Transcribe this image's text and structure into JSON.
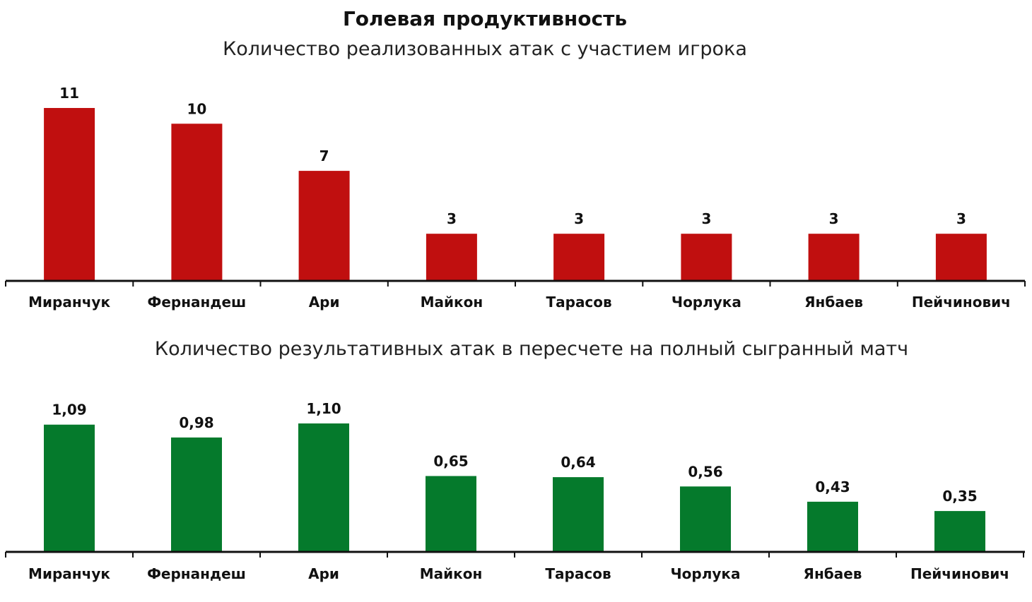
{
  "title": "Голевая продуктивность",
  "colors": {
    "top": "#c00f0f",
    "bottom": "#057a2c",
    "axis": "#111111"
  },
  "chart_data": [
    {
      "type": "bar",
      "title": "Количество реализованных атак с участием игрока",
      "categories": [
        "Миранчук",
        "Фернандеш",
        "Ари",
        "Майкон",
        "Тарасов",
        "Чорлука",
        "Янбаев",
        "Пейчинович"
      ],
      "values": [
        11,
        10,
        7,
        3,
        3,
        3,
        3,
        3
      ],
      "labels": [
        "11",
        "10",
        "7",
        "3",
        "3",
        "3",
        "3",
        "3"
      ],
      "ylim": [
        0,
        11
      ],
      "grid": false,
      "color": "#c00f0f"
    },
    {
      "type": "bar",
      "title": "Количество результативных атак в пересчете на полный сыгранный матч",
      "categories": [
        "Миранчук",
        "Фернандеш",
        "Ари",
        "Майкон",
        "Тарасов",
        "Чорлука",
        "Янбаев",
        "Пейчинович"
      ],
      "values": [
        1.09,
        0.98,
        1.1,
        0.65,
        0.64,
        0.56,
        0.43,
        0.35
      ],
      "labels": [
        "1,09",
        "0,98",
        "1,10",
        "0,65",
        "0,64",
        "0,56",
        "0,43",
        "0,35"
      ],
      "ylim": [
        0,
        1.1
      ],
      "grid": false,
      "color": "#057a2c"
    }
  ]
}
